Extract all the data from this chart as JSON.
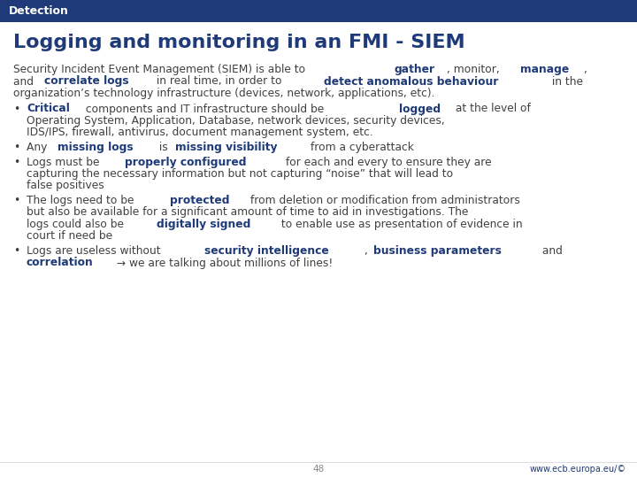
{
  "header_bg": "#1e3a78",
  "header_text": "Detection",
  "header_text_color": "#ffffff",
  "title": "Logging and monitoring in an FMI - SIEM",
  "title_color": "#1e3a78",
  "body_bg": "#ffffff",
  "text_color": "#404040",
  "bold_color": "#1e3a78",
  "page_number": "48",
  "footer_right": "www.ecb.europa.eu/©",
  "intro_lines": [
    [
      {
        "text": "Security Incident Event Management (SIEM) is able to ",
        "bold": false
      },
      {
        "text": "gather",
        "bold": true
      },
      {
        "text": ", monitor, ",
        "bold": false
      },
      {
        "text": "manage",
        "bold": true
      },
      {
        "text": ",",
        "bold": false
      }
    ],
    [
      {
        "text": "and ",
        "bold": false
      },
      {
        "text": "correlate logs",
        "bold": true
      },
      {
        "text": " in real time, in order to ",
        "bold": false
      },
      {
        "text": "detect anomalous behaviour",
        "bold": true
      },
      {
        "text": " in the",
        "bold": false
      }
    ],
    [
      {
        "text": "organization’s technology infrastructure (devices, network, applications, etc).",
        "bold": false
      }
    ]
  ],
  "bullets": [
    {
      "lines": [
        [
          {
            "text": "Critical",
            "bold": true
          },
          {
            "text": " components and IT infrastructure should be ",
            "bold": false
          },
          {
            "text": "logged",
            "bold": true
          },
          {
            "text": " at the level of",
            "bold": false
          }
        ],
        [
          {
            "text": "Operating System, Application, Database, network devices, security devices,",
            "bold": false
          }
        ],
        [
          {
            "text": "IDS/IPS, firewall, antivirus, document management system, etc.",
            "bold": false
          }
        ]
      ]
    },
    {
      "lines": [
        [
          {
            "text": "Any ",
            "bold": false
          },
          {
            "text": "missing logs",
            "bold": true
          },
          {
            "text": " is ",
            "bold": false
          },
          {
            "text": "missing visibility",
            "bold": true
          },
          {
            "text": " from a cyberattack",
            "bold": false
          }
        ]
      ]
    },
    {
      "lines": [
        [
          {
            "text": "Logs must be ",
            "bold": false
          },
          {
            "text": "properly configured",
            "bold": true
          },
          {
            "text": " for each and every to ensure they are",
            "bold": false
          }
        ],
        [
          {
            "text": "capturing the necessary information but not capturing “noise” that will lead to",
            "bold": false
          }
        ],
        [
          {
            "text": "false positives",
            "bold": false
          }
        ]
      ]
    },
    {
      "lines": [
        [
          {
            "text": "The logs need to be ",
            "bold": false
          },
          {
            "text": "protected",
            "bold": true
          },
          {
            "text": " from deletion or modification from administrators",
            "bold": false
          }
        ],
        [
          {
            "text": "but also be available for a significant amount of time to aid in investigations. The",
            "bold": false
          }
        ],
        [
          {
            "text": "logs could also be ",
            "bold": false
          },
          {
            "text": "digitally signed",
            "bold": true
          },
          {
            "text": " to enable use as presentation of evidence in",
            "bold": false
          }
        ],
        [
          {
            "text": "court if need be",
            "bold": false
          }
        ]
      ]
    },
    {
      "lines": [
        [
          {
            "text": "Logs are useless without ",
            "bold": false
          },
          {
            "text": "security intelligence",
            "bold": true
          },
          {
            "text": ", ",
            "bold": false
          },
          {
            "text": "business parameters",
            "bold": true
          },
          {
            "text": " and",
            "bold": false
          }
        ],
        [
          {
            "text": "correlation",
            "bold": true
          },
          {
            "text": " → we are talking about millions of lines!",
            "bold": false
          }
        ]
      ]
    }
  ]
}
